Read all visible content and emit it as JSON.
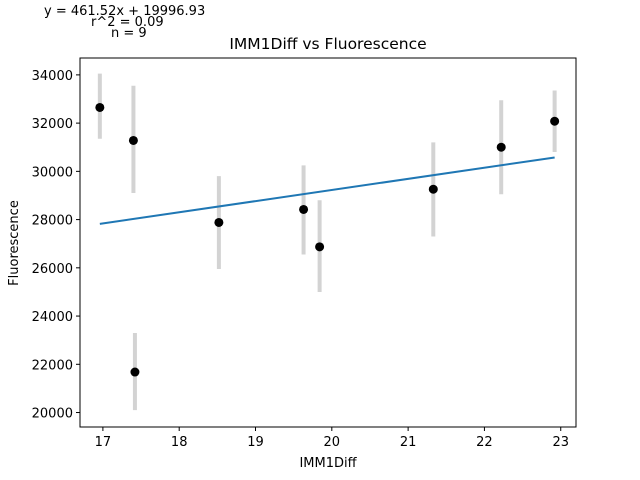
{
  "chart_data": {
    "type": "scatter",
    "title": "IMM1Diff vs Fluorescence",
    "xlabel": "IMM1Diff",
    "ylabel": "Fluorescence",
    "xlim": [
      16.7,
      23.2
    ],
    "ylim": [
      19400,
      34700
    ],
    "xticks": [
      17,
      18,
      19,
      20,
      21,
      22,
      23
    ],
    "yticks": [
      20000,
      22000,
      24000,
      26000,
      28000,
      30000,
      32000,
      34000
    ],
    "grid": false,
    "colors": {
      "points": "#000000",
      "errorbars": "#d3d3d3",
      "fit": "#1f77b4"
    },
    "points": [
      {
        "x": 16.96,
        "y": 32650,
        "ylow": 31350,
        "yhigh": 34050
      },
      {
        "x": 17.4,
        "y": 31280,
        "ylow": 29100,
        "yhigh": 33550
      },
      {
        "x": 17.42,
        "y": 21680,
        "ylow": 20100,
        "yhigh": 23300
      },
      {
        "x": 18.52,
        "y": 27880,
        "ylow": 25950,
        "yhigh": 29800
      },
      {
        "x": 19.63,
        "y": 28420,
        "ylow": 26550,
        "yhigh": 30250
      },
      {
        "x": 19.84,
        "y": 26870,
        "ylow": 25000,
        "yhigh": 28800
      },
      {
        "x": 21.33,
        "y": 29260,
        "ylow": 27300,
        "yhigh": 31200
      },
      {
        "x": 22.22,
        "y": 31000,
        "ylow": 29050,
        "yhigh": 32950
      },
      {
        "x": 22.92,
        "y": 32080,
        "ylow": 30800,
        "yhigh": 33350
      }
    ],
    "fit": {
      "slope": 461.52,
      "intercept": 19996.93,
      "x_range": [
        16.96,
        22.92
      ]
    },
    "annotations": {
      "equation": "y = 461.52x + 19996.93",
      "r2": "r^2 = 0.09",
      "n": "n = 9"
    }
  }
}
